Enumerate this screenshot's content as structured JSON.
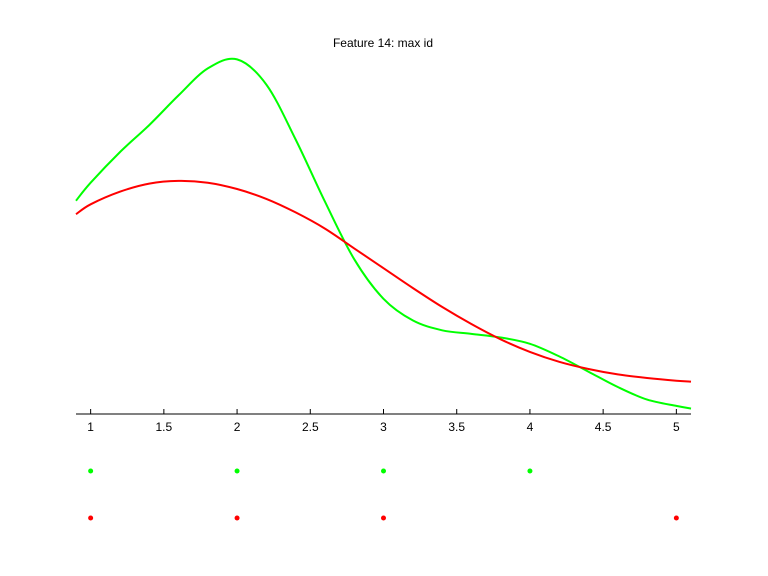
{
  "chart_data": {
    "type": "line",
    "title": "Feature 14: max id",
    "x": [
      0.9,
      1.0,
      1.2,
      1.4,
      1.6,
      1.8,
      2.0,
      2.2,
      2.4,
      2.6,
      2.8,
      3.0,
      3.2,
      3.4,
      3.6,
      3.8,
      4.0,
      4.2,
      4.4,
      4.6,
      4.8,
      5.0,
      5.1
    ],
    "series": [
      {
        "color": "#00ff00",
        "values": [
          0.237,
          0.257,
          0.291,
          0.321,
          0.354,
          0.384,
          0.394,
          0.366,
          0.305,
          0.236,
          0.172,
          0.128,
          0.104,
          0.093,
          0.089,
          0.085,
          0.078,
          0.064,
          0.047,
          0.03,
          0.016,
          0.009,
          0.006
        ],
        "points": [
          1,
          2,
          3,
          4
        ]
      },
      {
        "color": "#ff0000",
        "values": [
          0.222,
          0.233,
          0.247,
          0.256,
          0.259,
          0.257,
          0.25,
          0.239,
          0.224,
          0.206,
          0.184,
          0.162,
          0.14,
          0.119,
          0.1,
          0.083,
          0.069,
          0.058,
          0.05,
          0.044,
          0.04,
          0.037,
          0.036
        ],
        "points": [
          1,
          2,
          3,
          5
        ]
      }
    ],
    "xlim": [
      0.9,
      5.1
    ],
    "xticks": [
      1,
      1.5,
      2,
      2.5,
      3,
      3.5,
      4,
      4.5,
      5
    ],
    "ylim": [
      0,
      0.4
    ]
  }
}
